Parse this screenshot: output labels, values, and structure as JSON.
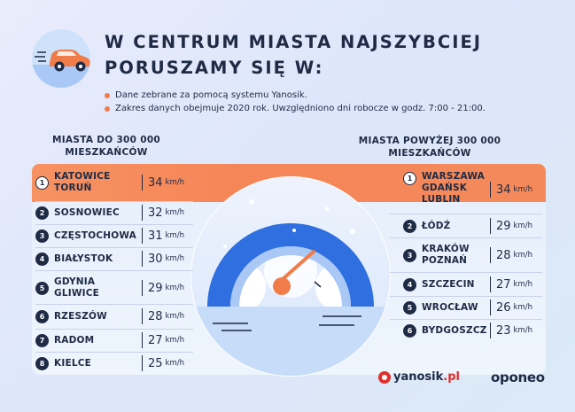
{
  "title_line1": "W CENTRUM MIASTA NAJSZYBCIEJ",
  "title_line2": "PORUSZAMY SIĘ W:",
  "bullets": [
    "Dane zebrane za pomocą systemu Yanosik.",
    "Zakres danych obejmuje 2020 rok. Uwzględniono dni robocze w godz. 7:00 - 21:00."
  ],
  "unit": "km/h",
  "left_header": "MIASTA DO 300 000 MIESZKAŃCÓW",
  "right_header": "MIASTA POWYŻEJ 300 000 MIESZKAŃCÓW",
  "left_rows": [
    {
      "rank": "1",
      "cities": [
        "KATOWICE",
        "TORUŃ"
      ],
      "speed": "34"
    },
    {
      "rank": "2",
      "cities": [
        "SOSNOWIEC"
      ],
      "speed": "32"
    },
    {
      "rank": "3",
      "cities": [
        "CZĘSTOCHOWA"
      ],
      "speed": "31"
    },
    {
      "rank": "4",
      "cities": [
        "BIAŁYSTOK"
      ],
      "speed": "30"
    },
    {
      "rank": "5",
      "cities": [
        "GDYNIA",
        "GLIWICE"
      ],
      "speed": "29"
    },
    {
      "rank": "6",
      "cities": [
        "RZESZÓW"
      ],
      "speed": "28"
    },
    {
      "rank": "7",
      "cities": [
        "RADOM"
      ],
      "speed": "27"
    },
    {
      "rank": "8",
      "cities": [
        "KIELCE"
      ],
      "speed": "25"
    }
  ],
  "right_rows": [
    {
      "rank": "1",
      "cities": [
        "WARSZAWA",
        "GDAŃSK",
        "LUBLIN"
      ],
      "speed": "34"
    },
    {
      "rank": "2",
      "cities": [
        "ŁÓDŹ"
      ],
      "speed": "29"
    },
    {
      "rank": "3",
      "cities": [
        "KRAKÓW",
        "POZNAŃ"
      ],
      "speed": "28"
    },
    {
      "rank": "4",
      "cities": [
        "SZCZECIN"
      ],
      "speed": "27"
    },
    {
      "rank": "5",
      "cities": [
        "WROCŁAW"
      ],
      "speed": "26"
    },
    {
      "rank": "6",
      "cities": [
        "BYDGOSZCZ"
      ],
      "speed": "23"
    }
  ],
  "logo_yanosik_main": "yanosik",
  "logo_yanosik_suffix": ".pl",
  "logo_oponeo": "oponeo",
  "colors": {
    "accent": "#f58658",
    "navy": "#1f2a44",
    "gauge_blue": "#2f6fe0"
  },
  "icons": [
    "car-icon",
    "speedometer-icon"
  ]
}
